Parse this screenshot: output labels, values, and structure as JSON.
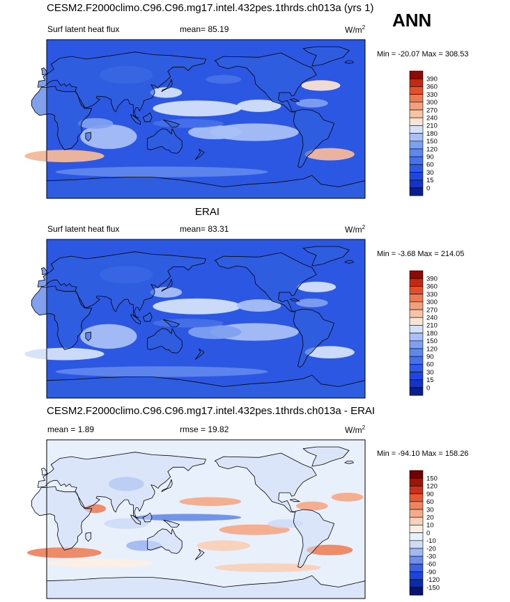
{
  "figure": {
    "season": "ANN"
  },
  "panels": [
    {
      "title": "CESM2.F2000climo.C96.C96.mg17.intel.432pes.1thrds.ch013a (yrs 1)",
      "left_label": "Surf latent heat flux",
      "center_label": "mean=  85.19",
      "units": "W/m",
      "units_sup": "2",
      "minmax": "Min = -20.07 Max = 308.53",
      "colorbar_labels": [
        "0",
        "15",
        "30",
        "60",
        "90",
        "120",
        "150",
        "180",
        "210",
        "240",
        "270",
        "300",
        "330",
        "360",
        "390"
      ],
      "colors": [
        "#0a1f8c",
        "#1434c8",
        "#1f46e0",
        "#2e5ae6",
        "#4671e8",
        "#5f87ec",
        "#7ea0f0",
        "#a8c0f5",
        "#d4e2f9",
        "#fbe3d3",
        "#f6c3a5",
        "#f2a07e",
        "#ec7a55",
        "#e14f2c",
        "#c02a12",
        "#8c0c05"
      ]
    },
    {
      "title": "ERAI",
      "left_label": "Surf latent heat flux",
      "center_label": "mean=  83.31",
      "units": "W/m",
      "units_sup": "2",
      "minmax": "Min =  -3.68 Max = 214.05",
      "colorbar_labels": [
        "0",
        "15",
        "30",
        "60",
        "90",
        "120",
        "150",
        "180",
        "210",
        "240",
        "270",
        "300",
        "330",
        "360",
        "390"
      ],
      "colors": [
        "#0a1f8c",
        "#1434c8",
        "#1f46e0",
        "#2e5ae6",
        "#4671e8",
        "#5f87ec",
        "#7ea0f0",
        "#a8c0f5",
        "#d4e2f9",
        "#fbe3d3",
        "#f6c3a5",
        "#f2a07e",
        "#ec7a55",
        "#e14f2c",
        "#c02a12",
        "#8c0c05"
      ]
    },
    {
      "title": "CESM2.F2000climo.C96.C96.mg17.intel.432pes.1thrds.ch013a - ERAI",
      "left_label": "mean =   1.89",
      "center_label": "rmse =  19.82",
      "units": "W/m",
      "units_sup": "2",
      "minmax": "Min = -94.10 Max = 158.26",
      "colorbar_labels": [
        "-150",
        "-120",
        "-90",
        "-60",
        "-30",
        "-20",
        "-10",
        "0",
        "10",
        "20",
        "30",
        "60",
        "90",
        "120",
        "150"
      ],
      "colors": [
        "#08156e",
        "#0d2aa8",
        "#1e44d8",
        "#3b62e3",
        "#6d8eea",
        "#a3b8f1",
        "#cfdcf7",
        "#e8f0fb",
        "#fdeee4",
        "#f9d0b8",
        "#f4ab8a",
        "#ee8560",
        "#e55a35",
        "#c9321a",
        "#9e1509",
        "#6e0402"
      ]
    }
  ],
  "chart_data": [
    {
      "type": "heatmap",
      "title": "CESM2.F2000climo.C96.C96.mg17.intel.432pes.1thrds.ch013a (yrs 1)",
      "variable": "Surf latent heat flux",
      "units": "W/m2",
      "mean": 85.19,
      "min": -20.07,
      "max": 308.53,
      "colorbar_levels": [
        0,
        15,
        30,
        60,
        90,
        120,
        150,
        180,
        210,
        240,
        270,
        300,
        330,
        360,
        390
      ]
    },
    {
      "type": "heatmap",
      "title": "ERAI",
      "variable": "Surf latent heat flux",
      "units": "W/m2",
      "mean": 83.31,
      "min": -3.68,
      "max": 214.05,
      "colorbar_levels": [
        0,
        15,
        30,
        60,
        90,
        120,
        150,
        180,
        210,
        240,
        270,
        300,
        330,
        360,
        390
      ]
    },
    {
      "type": "heatmap",
      "title": "CESM2.F2000climo.C96.C96.mg17.intel.432pes.1thrds.ch013a - ERAI",
      "units": "W/m2",
      "mean": 1.89,
      "rmse": 19.82,
      "min": -94.1,
      "max": 158.26,
      "colorbar_levels": [
        -150,
        -120,
        -90,
        -60,
        -30,
        -20,
        -10,
        0,
        10,
        20,
        30,
        60,
        90,
        120,
        150
      ]
    }
  ]
}
